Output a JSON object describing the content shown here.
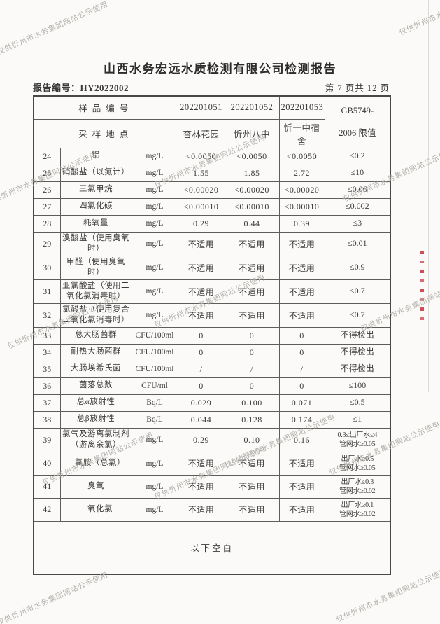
{
  "watermark": {
    "text": "仅供忻州市水务集团网站公示使用"
  },
  "header": {
    "title": "山西水务宏远水质检测有限公司检测报告",
    "report_no_label": "报告编号：",
    "report_no": "HY2022002",
    "page_info": "第 7 页共 12 页"
  },
  "table": {
    "sample_id_label": "样品编号",
    "sample_ids": [
      "202201051",
      "202201052",
      "202201053"
    ],
    "location_label": "采样地点",
    "locations": [
      "杏林花园",
      "忻州八中",
      "忻一中宿舍"
    ],
    "limit_header_line1": "GB5749-",
    "limit_header_line2": "2006 限值",
    "rows": [
      {
        "no": "24",
        "name": "铝",
        "unit": "mg/L",
        "v1": "<0.0050",
        "v2": "<0.0050",
        "v3": "<0.0050",
        "limit": "≤0.2"
      },
      {
        "no": "25",
        "name": "硝酸盐（以氮计）",
        "unit": "mg/L",
        "v1": "1.55",
        "v2": "1.85",
        "v3": "2.72",
        "limit": "≤10"
      },
      {
        "no": "26",
        "name": "三氯甲烷",
        "unit": "mg/L",
        "v1": "<0.00020",
        "v2": "<0.00020",
        "v3": "<0.00020",
        "limit": "≤0.06"
      },
      {
        "no": "27",
        "name": "四氯化碳",
        "unit": "mg/L",
        "v1": "<0.00010",
        "v2": "<0.00010",
        "v3": "<0.00010",
        "limit": "≤0.002"
      },
      {
        "no": "28",
        "name": "耗氧量",
        "unit": "mg/L",
        "v1": "0.29",
        "v2": "0.44",
        "v3": "0.39",
        "limit": "≤3"
      },
      {
        "no": "29",
        "name": "溴酸盐（使用臭氧时）",
        "unit": "mg/L",
        "v1": "不适用",
        "v2": "不适用",
        "v3": "不适用",
        "limit": "≤0.01"
      },
      {
        "no": "30",
        "name": "甲醛（使用臭氧时）",
        "unit": "mg/L",
        "v1": "不适用",
        "v2": "不适用",
        "v3": "不适用",
        "limit": "≤0.9"
      },
      {
        "no": "31",
        "name": "亚氯酸盐（使用二氧化氯消毒时）",
        "unit": "mg/L",
        "v1": "不适用",
        "v2": "不适用",
        "v3": "不适用",
        "limit": "≤0.7"
      },
      {
        "no": "32",
        "name": "氯酸盐（使用复合二氧化氯消毒时）",
        "unit": "mg/L",
        "v1": "不适用",
        "v2": "不适用",
        "v3": "不适用",
        "limit": "≤0.7"
      },
      {
        "no": "33",
        "name": "总大肠菌群",
        "unit": "CFU/100ml",
        "v1": "0",
        "v2": "0",
        "v3": "0",
        "limit": "不得检出"
      },
      {
        "no": "34",
        "name": "耐热大肠菌群",
        "unit": "CFU/100ml",
        "v1": "0",
        "v2": "0",
        "v3": "0",
        "limit": "不得检出"
      },
      {
        "no": "35",
        "name": "大肠埃希氏菌",
        "unit": "CFU/100ml",
        "v1": "/",
        "v2": "/",
        "v3": "/",
        "limit": "不得检出"
      },
      {
        "no": "36",
        "name": "菌落总数",
        "unit": "CFU/ml",
        "v1": "0",
        "v2": "0",
        "v3": "0",
        "limit": "≤100"
      },
      {
        "no": "37",
        "name": "总α放射性",
        "unit": "Bq/L",
        "v1": "0.029",
        "v2": "0.100",
        "v3": "0.071",
        "limit": "≤0.5"
      },
      {
        "no": "38",
        "name": "总β放射性",
        "unit": "Bq/L",
        "v1": "0.044",
        "v2": "0.128",
        "v3": "0.174",
        "limit": "≤1"
      },
      {
        "no": "39",
        "name": "氯气及游离氯制剂（游离余氯）",
        "unit": "mg/L",
        "v1": "0.29",
        "v2": "0.10",
        "v3": "0.16",
        "limit": "0.3≤出厂水≤4\n管网水≥0.05"
      },
      {
        "no": "40",
        "name": "一氯胺（总氯）",
        "unit": "mg/L",
        "v1": "不适用",
        "v2": "不适用",
        "v3": "不适用",
        "limit": "出厂水≥0.5\n管网水≥0.05"
      },
      {
        "no": "41",
        "name": "臭氧",
        "unit": "mg/L",
        "v1": "不适用",
        "v2": "不适用",
        "v3": "不适用",
        "limit": "出厂水≤0.3\n管网水≥0.02"
      },
      {
        "no": "42",
        "name": "二氧化氯",
        "unit": "mg/L",
        "v1": "不适用",
        "v2": "不适用",
        "v3": "不适用",
        "limit": "出厂水≥0.1\n管网水≥0.02"
      }
    ],
    "footer_note": "以下空白"
  },
  "colors": {
    "red_stamp": "#c3232d",
    "watermark_gray": "#b4b1ad"
  }
}
